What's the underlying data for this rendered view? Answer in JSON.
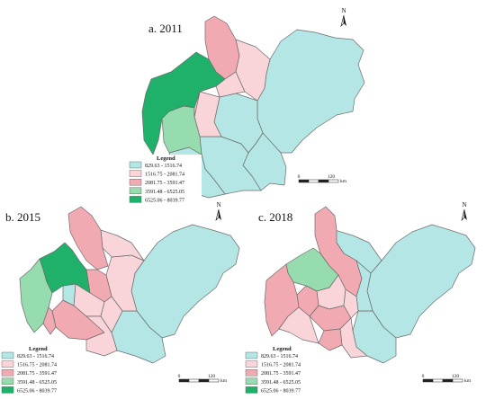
{
  "panels": [
    {
      "id": "a",
      "title": "a. 2011"
    },
    {
      "id": "b",
      "title": "b. 2015"
    },
    {
      "id": "c",
      "title": "c. 2018"
    }
  ],
  "legend": {
    "title": "Legend",
    "classes": [
      {
        "label": "829.63 - 1516.74",
        "color": "#b3e6e4"
      },
      {
        "label": "1516.75 - 2081.74",
        "color": "#f9d4d9"
      },
      {
        "label": "2081.75 - 3591.47",
        "color": "#f1a9b2"
      },
      {
        "label": "3591.48 - 6525.05",
        "color": "#97dcae"
      },
      {
        "label": "6525.06 - 8039.77",
        "color": "#1fb06a"
      }
    ]
  },
  "scale": {
    "zero": "0",
    "max": "120",
    "unit": "km"
  },
  "north": {
    "label": "N"
  }
}
